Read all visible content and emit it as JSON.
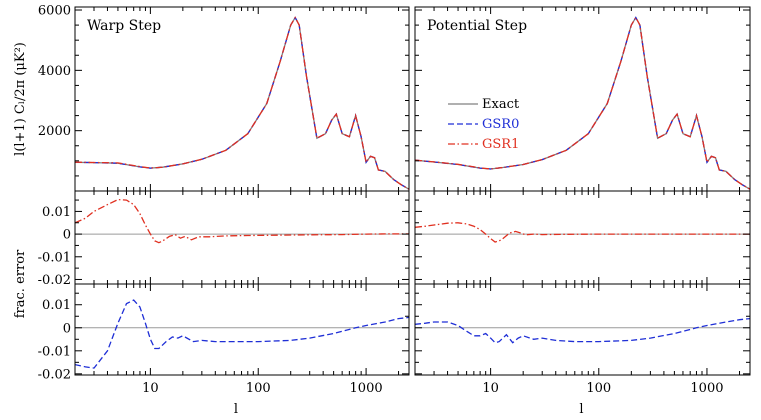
{
  "colors": {
    "exact": "#808080",
    "gsr0": "#1f2fd6",
    "gsr1": "#e03020",
    "zero_line": "#9a9a9a",
    "frame": "#000000"
  },
  "labels": {
    "ylabel_top": "l(l+1) Cₗ/2π (μK²)",
    "ylabel_mid": "frac. error",
    "xlabel": "l"
  },
  "legend": [
    {
      "key": "exact",
      "label": "Exact",
      "style": "solid"
    },
    {
      "key": "gsr0",
      "label": "GSR0",
      "style": "dashed"
    },
    {
      "key": "gsr1",
      "label": "GSR1",
      "style": "dashdot"
    }
  ],
  "chart_data": [
    {
      "type": "line",
      "title": "Warp Step",
      "panels": [
        {
          "id": "spectrum",
          "ylabel": "l(l+1) Cₗ/2π (μK²)",
          "xscale": "log",
          "xlim": [
            2,
            2500
          ],
          "ylim": [
            0,
            6100
          ],
          "yticks": [
            2000,
            4000,
            6000
          ],
          "series": [
            {
              "name": "Exact",
              "x": [
                2,
                3,
                5,
                8,
                10,
                13,
                20,
                30,
                50,
                80,
                120,
                160,
                200,
                220,
                240,
                280,
                350,
                420,
                480,
                530,
                600,
                700,
                800,
                900,
                1000,
                1100,
                1200,
                1300,
                1500,
                1800,
                2100,
                2500
              ],
              "y": [
                950,
                940,
                920,
                800,
                760,
                790,
                900,
                1050,
                1350,
                1900,
                2900,
                4300,
                5500,
                5750,
                5500,
                3800,
                1750,
                1900,
                2350,
                2550,
                1900,
                1800,
                2500,
                1800,
                950,
                1150,
                1100,
                700,
                650,
                380,
                220,
                60
              ]
            },
            {
              "name": "GSR0",
              "x": [
                2,
                3,
                5,
                8,
                10,
                13,
                20,
                30,
                50,
                80,
                120,
                160,
                200,
                220,
                240,
                280,
                350,
                420,
                480,
                530,
                600,
                700,
                800,
                900,
                1000,
                1100,
                1200,
                1300,
                1500,
                1800,
                2100,
                2500
              ],
              "y": [
                950,
                940,
                920,
                800,
                760,
                790,
                900,
                1050,
                1350,
                1900,
                2900,
                4300,
                5500,
                5750,
                5500,
                3800,
                1750,
                1900,
                2350,
                2550,
                1900,
                1800,
                2500,
                1800,
                950,
                1150,
                1100,
                700,
                650,
                380,
                220,
                60
              ]
            },
            {
              "name": "GSR1",
              "x": [
                2,
                3,
                5,
                8,
                10,
                13,
                20,
                30,
                50,
                80,
                120,
                160,
                200,
                220,
                240,
                280,
                350,
                420,
                480,
                530,
                600,
                700,
                800,
                900,
                1000,
                1100,
                1200,
                1300,
                1500,
                1800,
                2100,
                2500
              ],
              "y": [
                955,
                945,
                930,
                810,
                760,
                790,
                900,
                1050,
                1350,
                1900,
                2900,
                4300,
                5500,
                5750,
                5500,
                3800,
                1750,
                1900,
                2350,
                2550,
                1900,
                1800,
                2500,
                1800,
                950,
                1150,
                1100,
                700,
                650,
                380,
                220,
                60
              ]
            }
          ]
        },
        {
          "id": "gsr1_error",
          "ylabel": "frac. error",
          "xscale": "log",
          "xlim": [
            2,
            2500
          ],
          "ylim": [
            -0.022,
            0.019
          ],
          "yticks": [
            -0.02,
            -0.01,
            0,
            0.01
          ],
          "series": [
            {
              "name": "GSR1",
              "x": [
                2,
                2.5,
                3,
                4,
                5,
                6,
                7,
                8,
                9,
                10,
                11,
                12,
                13,
                15,
                17,
                19,
                21,
                24,
                28,
                35,
                50,
                80,
                150,
                300,
                600,
                1000,
                1500,
                2000,
                2500
              ],
              "y": [
                0.005,
                0.007,
                0.01,
                0.013,
                0.0152,
                0.015,
                0.013,
                0.009,
                0.004,
                0.0,
                -0.003,
                -0.0038,
                -0.003,
                -0.001,
                -0.0002,
                -0.0018,
                -0.001,
                -0.0025,
                -0.0012,
                -0.0012,
                -0.0008,
                -0.0006,
                -0.0005,
                -0.0003,
                -0.0002,
                0.0,
                0.0001,
                0.0001,
                0.0001
              ]
            }
          ]
        },
        {
          "id": "gsr0_error",
          "ylabel": "",
          "xscale": "log",
          "xlim": [
            2,
            2500
          ],
          "ylim": [
            -0.0205,
            0.019
          ],
          "yticks": [
            -0.02,
            -0.01,
            0,
            0.01
          ],
          "series": [
            {
              "name": "GSR0",
              "x": [
                2,
                2.5,
                3,
                4,
                5,
                6,
                7,
                8,
                9,
                10,
                11,
                12,
                14,
                16,
                18,
                20,
                25,
                30,
                40,
                60,
                100,
                200,
                300,
                500,
                800,
                1000,
                1500,
                2000,
                2500
              ],
              "y": [
                -0.016,
                -0.017,
                -0.0175,
                -0.01,
                0.002,
                0.0105,
                0.012,
                0.009,
                0.002,
                -0.005,
                -0.009,
                -0.009,
                -0.006,
                -0.004,
                -0.0045,
                -0.0035,
                -0.006,
                -0.0055,
                -0.006,
                -0.006,
                -0.006,
                -0.0055,
                -0.0045,
                -0.0025,
                0.0,
                0.001,
                0.0025,
                0.004,
                0.0045
              ]
            }
          ]
        }
      ]
    },
    {
      "type": "line",
      "title": "Potential Step",
      "panels": [
        {
          "id": "spectrum",
          "xscale": "log",
          "xlim": [
            2,
            2500
          ],
          "ylim": [
            0,
            6100
          ],
          "series": [
            {
              "name": "Exact",
              "x": [
                2,
                3,
                5,
                8,
                10,
                13,
                20,
                30,
                50,
                80,
                120,
                160,
                200,
                220,
                240,
                280,
                350,
                420,
                480,
                530,
                600,
                700,
                800,
                900,
                1000,
                1100,
                1200,
                1300,
                1500,
                1800,
                2100,
                2500
              ],
              "y": [
                1020,
                960,
                880,
                760,
                730,
                780,
                880,
                1040,
                1350,
                1900,
                2900,
                4300,
                5500,
                5750,
                5500,
                3800,
                1750,
                1900,
                2350,
                2550,
                1900,
                1800,
                2500,
                1800,
                950,
                1150,
                1100,
                700,
                650,
                380,
                220,
                60
              ]
            },
            {
              "name": "GSR0",
              "x": [
                2,
                3,
                5,
                8,
                10,
                13,
                20,
                30,
                50,
                80,
                120,
                160,
                200,
                220,
                240,
                280,
                350,
                420,
                480,
                530,
                600,
                700,
                800,
                900,
                1000,
                1100,
                1200,
                1300,
                1500,
                1800,
                2100,
                2500
              ],
              "y": [
                1020,
                960,
                880,
                760,
                730,
                780,
                880,
                1040,
                1350,
                1900,
                2900,
                4300,
                5500,
                5750,
                5500,
                3800,
                1750,
                1900,
                2350,
                2550,
                1900,
                1800,
                2500,
                1800,
                950,
                1150,
                1100,
                700,
                650,
                380,
                220,
                60
              ]
            },
            {
              "name": "GSR1",
              "x": [
                2,
                3,
                5,
                8,
                10,
                13,
                20,
                30,
                50,
                80,
                120,
                160,
                200,
                220,
                240,
                280,
                350,
                420,
                480,
                530,
                600,
                700,
                800,
                900,
                1000,
                1100,
                1200,
                1300,
                1500,
                1800,
                2100,
                2500
              ],
              "y": [
                1025,
                965,
                885,
                765,
                730,
                780,
                880,
                1040,
                1350,
                1900,
                2900,
                4300,
                5500,
                5750,
                5500,
                3800,
                1750,
                1900,
                2350,
                2550,
                1900,
                1800,
                2500,
                1800,
                950,
                1150,
                1100,
                700,
                650,
                380,
                220,
                60
              ]
            }
          ]
        },
        {
          "id": "gsr1_error",
          "xscale": "log",
          "xlim": [
            2,
            2500
          ],
          "ylim": [
            -0.022,
            0.019
          ],
          "series": [
            {
              "name": "GSR1",
              "x": [
                2,
                2.5,
                3,
                4,
                5,
                6,
                7,
                8,
                9,
                10,
                11,
                12,
                13,
                15,
                17,
                19,
                21,
                25,
                30,
                50,
                100,
                300,
                1000,
                2500
              ],
              "y": [
                0.003,
                0.0035,
                0.004,
                0.0048,
                0.005,
                0.0045,
                0.0035,
                0.002,
                0.0,
                -0.002,
                -0.0035,
                -0.003,
                -0.002,
                0.0005,
                0.0012,
                0.0005,
                -0.0003,
                0.0,
                -0.0002,
                -0.0001,
                0.0,
                0.0,
                0.0,
                0.0
              ]
            }
          ]
        },
        {
          "id": "gsr0_error",
          "xscale": "log",
          "xlim": [
            2,
            2500
          ],
          "ylim": [
            -0.0205,
            0.019
          ],
          "series": [
            {
              "name": "GSR0",
              "x": [
                2,
                2.5,
                3,
                4,
                5,
                6,
                7,
                8,
                9,
                10,
                11,
                12,
                14,
                16,
                18,
                20,
                25,
                30,
                40,
                60,
                100,
                200,
                300,
                500,
                800,
                1000,
                1500,
                2000,
                2500
              ],
              "y": [
                0.0015,
                0.002,
                0.0025,
                0.0025,
                0.001,
                -0.0015,
                -0.0035,
                -0.0035,
                -0.0025,
                -0.0045,
                -0.0065,
                -0.006,
                -0.003,
                -0.0065,
                -0.0045,
                -0.0035,
                -0.005,
                -0.0045,
                -0.0055,
                -0.006,
                -0.006,
                -0.0055,
                -0.0045,
                -0.0025,
                0.0,
                0.001,
                0.0025,
                0.0035,
                0.004
              ]
            }
          ]
        }
      ]
    }
  ],
  "xaxis": {
    "ticks": [
      10,
      100,
      1000
    ],
    "tick_labels": [
      "10",
      "100",
      "1000"
    ]
  }
}
